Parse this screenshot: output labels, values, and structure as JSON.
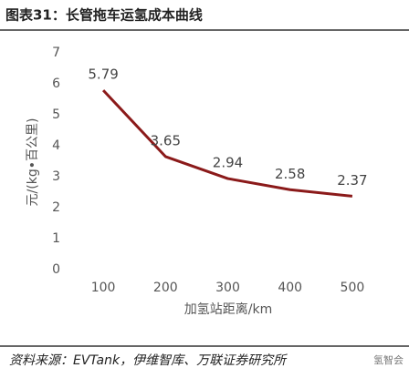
{
  "chart_data": {
    "type": "line",
    "title": "图表31：长管拖车运氢成本曲线",
    "categories": [
      "100",
      "200",
      "300",
      "400",
      "500"
    ],
    "values": [
      5.79,
      3.65,
      2.94,
      2.58,
      2.37
    ],
    "color": "#8b1a1a",
    "xlabel": "加氢站距离/km",
    "ylabel": "元/(kg•百公里)",
    "ylim": [
      0,
      7
    ],
    "yticks": [
      0,
      1,
      2,
      3,
      4,
      5,
      6,
      7
    ],
    "grid": false,
    "source": "资料来源：EVTank，伊维智库、万联证券研究所",
    "watermark": "氢智会"
  }
}
